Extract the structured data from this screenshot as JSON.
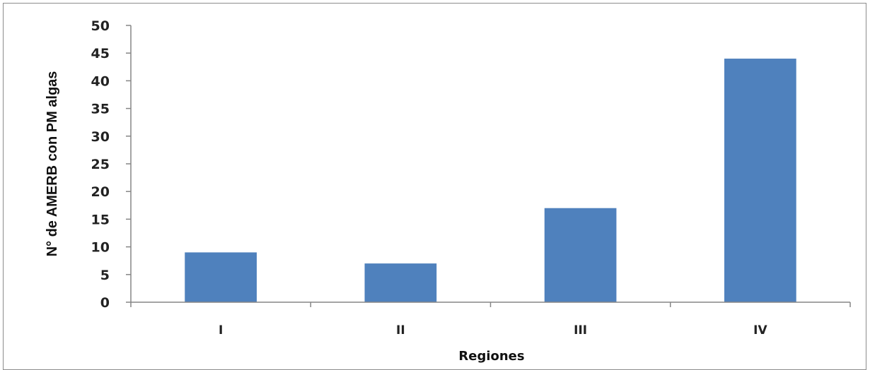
{
  "chart_data": {
    "type": "bar",
    "title": "",
    "xlabel": "Regiones",
    "ylabel": "N° de AMERB con PM algas",
    "categories": [
      "I",
      "II",
      "III",
      "IV"
    ],
    "values": [
      9,
      7,
      17,
      44
    ],
    "ylim": [
      0,
      50
    ],
    "ytick_step": 5,
    "yticks": [
      "0",
      "5",
      "10",
      "15",
      "20",
      "25",
      "30",
      "35",
      "40",
      "45",
      "50"
    ],
    "grid": false,
    "legend": "none",
    "bar_color": "#4f81bd"
  }
}
